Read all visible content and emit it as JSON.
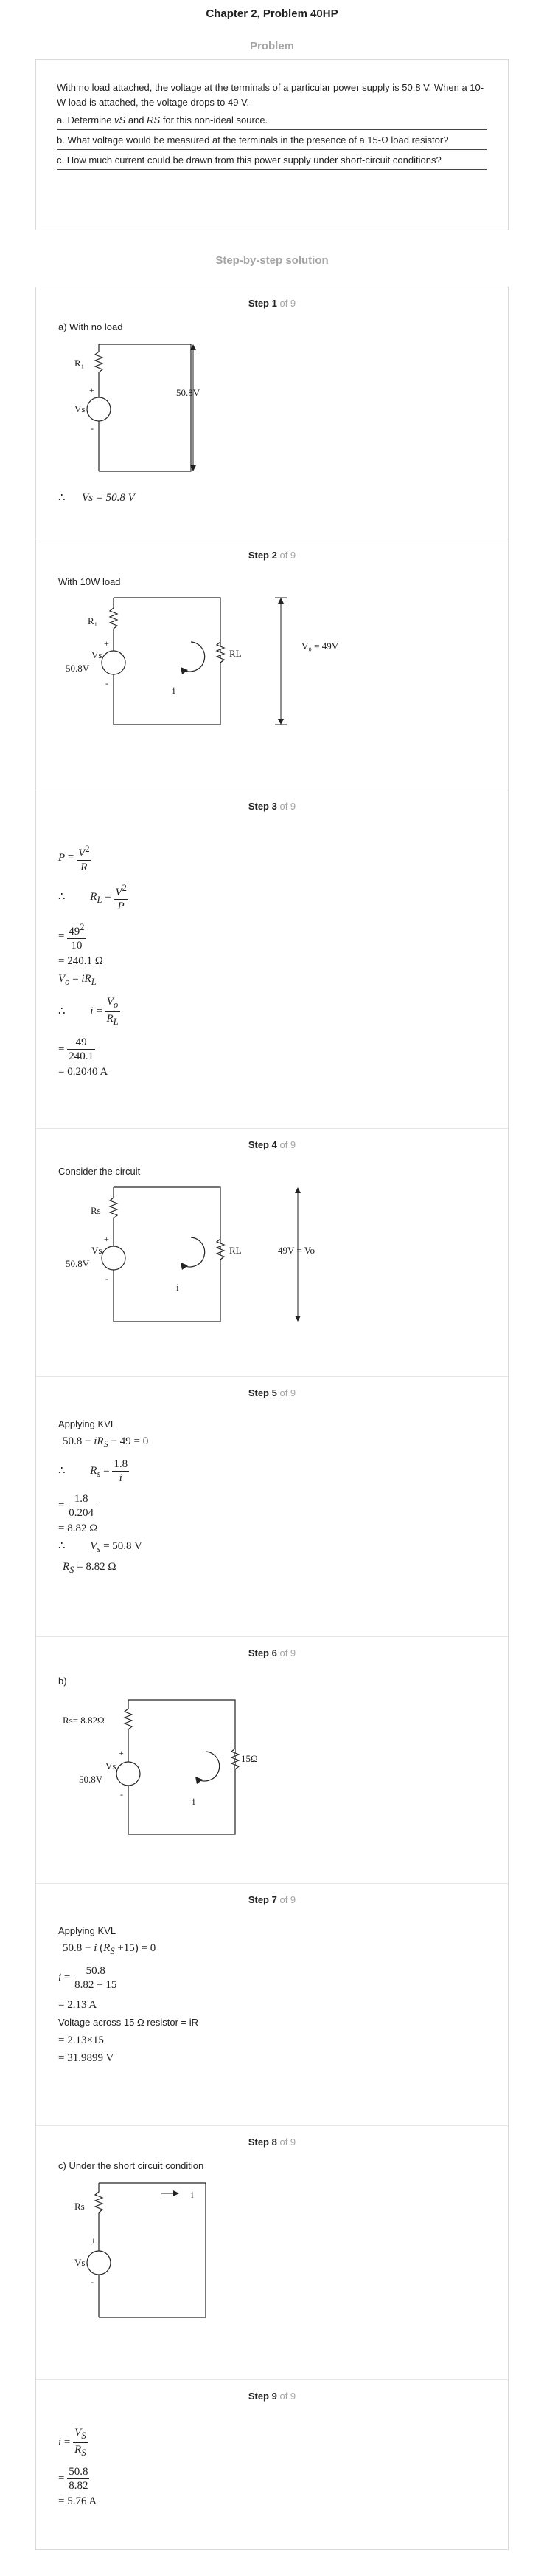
{
  "header": {
    "title": "Chapter 2, Problem 40HP",
    "problem_label": "Problem"
  },
  "problem": {
    "text1": "With no load attached, the voltage at the terminals of a particular power supply is 50.8 V. When a 10-W load is attached, the voltage drops to 49 V.",
    "part_a_prefix": "a. Determine ",
    "part_a_vs": "vS",
    "part_a_and": " and ",
    "part_a_rs": "RS",
    "part_a_suffix": " for this non-ideal source.",
    "part_b": "b. What voltage would be measured at the terminals in the presence of a 15-Ω load resistor?",
    "part_c": "c. How much current could be drawn from this power supply under short-circuit conditions?"
  },
  "solution": {
    "title": "Step-by-step solution",
    "of_total": "of 9"
  },
  "steps": [
    {
      "label": "Step 1",
      "text": "a) With no load",
      "r1": "R₁",
      "vs": "Vs",
      "plus": "+",
      "minus": "-",
      "v": "50.8V",
      "therefore": "∴",
      "result": "Vs = 50.8 V"
    },
    {
      "label": "Step 2",
      "text": "With 10W load",
      "r1": "R₁",
      "vs": "Vs",
      "vsval": "50.8V",
      "plus": "+",
      "minus": "-",
      "rl": "RL",
      "i": "i",
      "vo": "V₀ = 49V"
    },
    {
      "label": "Step 3"
    },
    {
      "label": "Step 4",
      "text": "Consider the circuit",
      "rs": "Rs",
      "vs": "Vs",
      "vsval": "50.8V",
      "plus": "+",
      "minus": "-",
      "rl": "RL",
      "i": "i",
      "vo": "49V = Vo"
    },
    {
      "label": "Step 5",
      "text": "Applying KVL"
    },
    {
      "label": "Step 6",
      "text": "b)",
      "rs": "Rs= 8.82Ω",
      "vs": "Vs",
      "vsval": "50.8V",
      "plus": "+",
      "minus": "-",
      "rl": "15Ω",
      "i": "i"
    },
    {
      "label": "Step 7",
      "text": "Applying KVL",
      "text2": "Voltage across  15 Ω resistor  = iR"
    },
    {
      "label": "Step 8",
      "text": "c) Under the short circuit condition",
      "rs": "Rs",
      "vs": "Vs",
      "plus": "+",
      "minus": "-",
      "i": "i"
    },
    {
      "label": "Step 9"
    }
  ]
}
